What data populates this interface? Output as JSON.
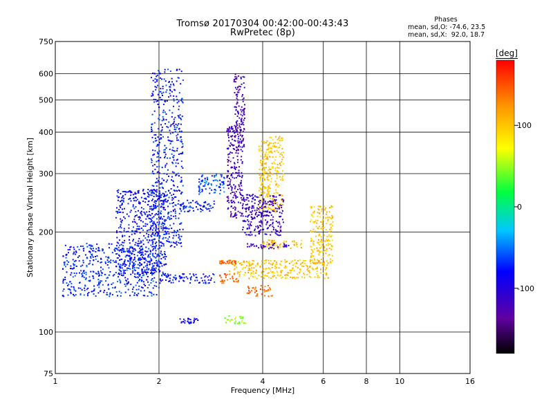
{
  "header": {
    "title": "Tromsø 20170304 00:42:00-00:43:43",
    "subtitle": "RwPretec (8p)"
  },
  "stats": {
    "heading": "Phases",
    "line_o": "mean, sd,O: -74.6, 23.5",
    "line_x": "mean, sd,X:  92.0, 18.7"
  },
  "colorbar": {
    "unit": "[deg]",
    "ticks": [
      "100",
      "0",
      "-100"
    ],
    "tick_values": [
      100,
      0,
      -100
    ],
    "range": [
      -180,
      180
    ],
    "colormap": "rainbow (black-purple-blue-cyan-green-yellow-orange-red)"
  },
  "chart_data": {
    "type": "scatter",
    "title": "Tromsø 20170304 00:42:00-00:43:43",
    "subtitle": "RwPretec (8p)",
    "xlabel": "Frequency [MHz]",
    "ylabel": "Stationary phase Virtual Height [km]",
    "x_scale": "log",
    "y_scale": "log",
    "xlim": [
      1,
      16
    ],
    "ylim": [
      75,
      750
    ],
    "x_ticks": [
      1,
      2,
      4,
      6,
      8,
      10,
      16
    ],
    "x_tick_labels": [
      "1",
      "2",
      "4",
      "6",
      "8",
      "10",
      "16"
    ],
    "y_ticks": [
      75,
      100,
      200,
      300,
      400,
      500,
      600,
      750
    ],
    "y_tick_labels": [
      "75",
      "100",
      "200",
      "300",
      "400",
      "500",
      "600",
      "750"
    ],
    "grid": true,
    "series": [
      {
        "values_color": "phase in deg",
        "clusters": [
          {
            "x": [
              1.05,
              2.0
            ],
            "y": [
              128,
              185
            ],
            "phase": -70
          },
          {
            "x": [
              1.5,
              2.1
            ],
            "y": [
              150,
              270
            ],
            "phase": -80
          },
          {
            "x": [
              1.9,
              2.35
            ],
            "y": [
              180,
              620
            ],
            "phase": -75
          },
          {
            "x": [
              2.0,
              2.9
            ],
            "y": [
              140,
              150
            ],
            "phase": -80
          },
          {
            "x": [
              2.3,
              2.9
            ],
            "y": [
              230,
              250
            ],
            "phase": -75
          },
          {
            "x": [
              2.6,
              3.1
            ],
            "y": [
              260,
              300
            ],
            "phase": -60
          },
          {
            "x": [
              3.15,
              3.5
            ],
            "y": [
              220,
              420
            ],
            "phase": -120
          },
          {
            "x": [
              3.3,
              3.55
            ],
            "y": [
              360,
              600
            ],
            "phase": -120
          },
          {
            "x": [
              3.9,
              4.6
            ],
            "y": [
              230,
              390
            ],
            "phase": 100
          },
          {
            "x": [
              3.2,
              6.2
            ],
            "y": [
              145,
              165
            ],
            "phase": 100
          },
          {
            "x": [
              5.5,
              6.4
            ],
            "y": [
              160,
              240
            ],
            "phase": 100
          },
          {
            "x": [
              4.0,
              5.2
            ],
            "y": [
              178,
              190
            ],
            "phase": 105
          },
          {
            "x": [
              3.0,
              3.4
            ],
            "y": [
              140,
              150
            ],
            "phase": 140
          },
          {
            "x": [
              3.6,
              4.3
            ],
            "y": [
              128,
              138
            ],
            "phase": 140
          },
          {
            "x": [
              3.0,
              3.35
            ],
            "y": [
              160,
              165
            ],
            "phase": 140
          },
          {
            "x": [
              3.1,
              3.6
            ],
            "y": [
              106,
              112
            ],
            "phase": 50
          },
          {
            "x": [
              2.3,
              2.6
            ],
            "y": [
              106,
              110
            ],
            "phase": -90
          },
          {
            "x": [
              3.6,
              4.8
            ],
            "y": [
              178,
              185
            ],
            "phase": -115
          },
          {
            "x": [
              3.5,
              4.6
            ],
            "y": [
              195,
              260
            ],
            "phase": -110
          }
        ]
      }
    ]
  }
}
